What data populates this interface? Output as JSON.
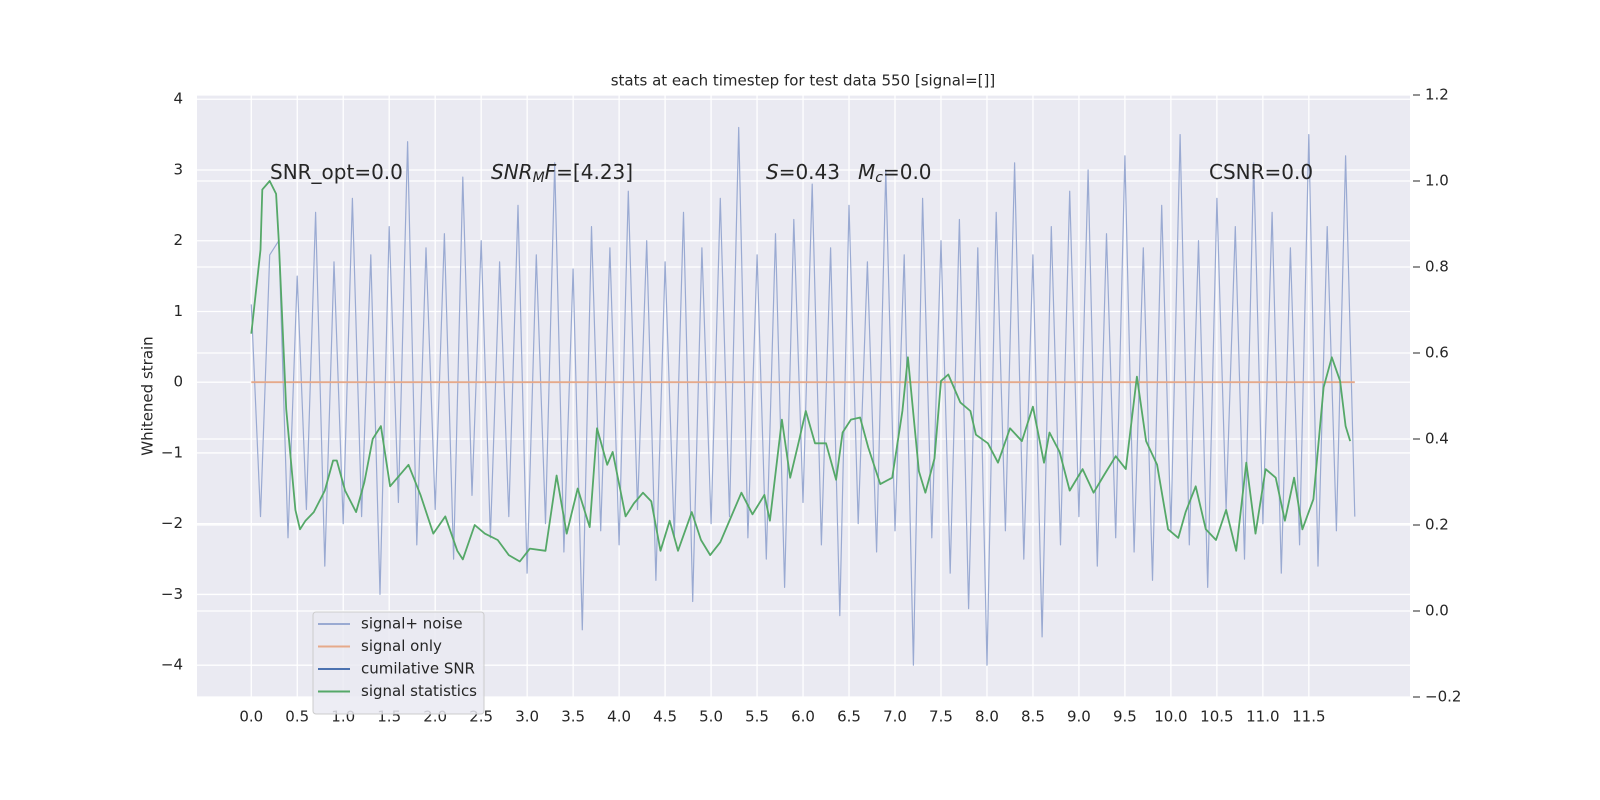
{
  "chart_data": {
    "type": "line",
    "title": "stats at each timestep for test data 550 [signal=[]]",
    "ylabel": "Whitened strain",
    "xlim": [
      -0.59,
      12.6
    ],
    "ylim": [
      -4.45,
      4.06
    ],
    "y2lim": [
      -0.2,
      1.2
    ],
    "xticks": [
      {
        "value": 0,
        "label": "0.0"
      },
      {
        "value": 0.5,
        "label": "0.5"
      },
      {
        "value": 1,
        "label": "1.0"
      },
      {
        "value": 1.5,
        "label": "1.5"
      },
      {
        "value": 2,
        "label": "2.0"
      },
      {
        "value": 2.5,
        "label": "2.5"
      },
      {
        "value": 3,
        "label": "3.0"
      },
      {
        "value": 3.5,
        "label": "3.5"
      },
      {
        "value": 4,
        "label": "4.0"
      },
      {
        "value": 4.5,
        "label": "4.5"
      },
      {
        "value": 5,
        "label": "5.0"
      },
      {
        "value": 5.5,
        "label": "5.5"
      },
      {
        "value": 6,
        "label": "6.0"
      },
      {
        "value": 6.5,
        "label": "6.5"
      },
      {
        "value": 7,
        "label": "7.0"
      },
      {
        "value": 7.5,
        "label": "7.5"
      },
      {
        "value": 8,
        "label": "8.0"
      },
      {
        "value": 8.5,
        "label": "8.5"
      },
      {
        "value": 9,
        "label": "9.0"
      },
      {
        "value": 9.5,
        "label": "9.5"
      },
      {
        "value": 10,
        "label": "10.0"
      },
      {
        "value": 10.5,
        "label": "10.5"
      },
      {
        "value": 11,
        "label": "11.0"
      },
      {
        "value": 11.5,
        "label": "11.5"
      }
    ],
    "yticks": [
      {
        "value": -4,
        "label": "−4"
      },
      {
        "value": -3,
        "label": "−3"
      },
      {
        "value": -2,
        "label": "−2"
      },
      {
        "value": -1,
        "label": "−1"
      },
      0,
      1,
      2,
      3,
      4
    ],
    "y2ticks": [
      {
        "value": -0.2,
        "label": "−0.2"
      },
      {
        "value": 0,
        "label": "0.0"
      },
      0.2,
      0.4,
      0.6,
      0.8,
      {
        "value": 1,
        "label": "1.0"
      },
      1.2
    ],
    "grid": true,
    "legend": "lower left",
    "annotations": [
      {
        "parts": [
          {
            "text": "SNR_opt=0.0",
            "style": "normal"
          }
        ]
      },
      {
        "parts": [
          {
            "text": "SNR",
            "style": "italic"
          },
          {
            "text": "M",
            "style": "sub"
          },
          {
            "text": "F",
            "style": "italic"
          },
          {
            "text": "=[4.23]",
            "style": "normal"
          }
        ]
      },
      {
        "parts": [
          {
            "text": "S",
            "style": "italic"
          },
          {
            "text": "=0.43",
            "style": "normal"
          }
        ]
      },
      {
        "parts": [
          {
            "text": "M",
            "style": "italic"
          },
          {
            "text": "c",
            "style": "sub"
          },
          {
            "text": "=0.0",
            "style": "normal"
          }
        ]
      },
      {
        "parts": [
          {
            "text": "CSNR=0.0",
            "style": "normal"
          }
        ]
      }
    ],
    "series": [
      {
        "name": "signal+ noise",
        "color": "#9aaad2",
        "x": [
          0,
          0.1,
          0.2,
          0.3,
          0.4,
          0.5,
          0.6,
          0.7,
          0.8,
          0.9,
          1,
          1.1,
          1.2,
          1.3,
          1.4,
          1.5,
          1.6,
          1.7,
          1.8,
          1.9,
          2,
          2.1,
          2.2,
          2.3,
          2.4,
          2.5,
          2.6,
          2.7,
          2.8,
          2.9,
          3,
          3.1,
          3.2,
          3.3,
          3.4,
          3.5,
          3.6,
          3.7,
          3.8,
          3.9,
          4,
          4.1,
          4.2,
          4.3,
          4.4,
          4.5,
          4.6,
          4.7,
          4.8,
          4.9,
          5,
          5.1,
          5.2,
          5.3,
          5.4,
          5.5,
          5.6,
          5.7,
          5.8,
          5.9,
          6,
          6.1,
          6.2,
          6.3,
          6.4,
          6.5,
          6.6,
          6.7,
          6.8,
          6.9,
          7,
          7.1,
          7.2,
          7.3,
          7.4,
          7.5,
          7.6,
          7.7,
          7.8,
          7.9,
          8,
          8.1,
          8.2,
          8.3,
          8.4,
          8.5,
          8.6,
          8.7,
          8.8,
          8.9,
          9,
          9.1,
          9.2,
          9.3,
          9.4,
          9.5,
          9.6,
          9.7,
          9.8,
          9.9,
          10,
          10.1,
          10.2,
          10.3,
          10.4,
          10.5,
          10.6,
          10.7,
          10.8,
          10.9,
          11,
          11.1,
          11.2,
          11.3,
          11.4,
          11.5,
          11.6,
          11.7,
          11.8,
          11.9,
          12
        ],
        "values": [
          1.1,
          -1.9,
          1.8,
          2.0,
          -2.2,
          1.5,
          -1.8,
          2.4,
          -2.6,
          1.7,
          -2.0,
          2.6,
          -1.9,
          1.8,
          -3.0,
          2.2,
          -1.7,
          3.4,
          -2.3,
          1.9,
          -1.8,
          2.1,
          -2.5,
          2.9,
          -1.6,
          2.0,
          -2.2,
          1.7,
          -1.9,
          2.5,
          -2.7,
          1.8,
          -2.0,
          3.1,
          -2.4,
          1.6,
          -3.5,
          2.2,
          -2.1,
          1.9,
          -2.3,
          2.7,
          -1.8,
          2.0,
          -2.8,
          1.7,
          -2.2,
          2.4,
          -3.1,
          1.9,
          -2.0,
          2.6,
          -1.9,
          3.6,
          -2.2,
          1.8,
          -2.5,
          2.1,
          -2.9,
          2.3,
          -1.7,
          2.8,
          -2.3,
          1.9,
          -3.3,
          2.5,
          -2.0,
          1.7,
          -2.4,
          3.0,
          -2.1,
          1.8,
          -4.0,
          2.6,
          -2.2,
          2.0,
          -2.7,
          2.3,
          -3.2,
          1.9,
          -4.0,
          2.4,
          -2.1,
          3.1,
          -2.5,
          1.8,
          -3.6,
          2.2,
          -2.3,
          2.7,
          -1.9,
          3.0,
          -2.6,
          2.1,
          -2.2,
          3.2,
          -2.4,
          1.9,
          -2.8,
          2.5,
          -2.1,
          3.5,
          -2.3,
          2.0,
          -2.9,
          2.6,
          -1.8,
          2.2,
          -2.5,
          3.1,
          -2.0,
          2.4,
          -2.7,
          1.9,
          -2.3,
          3.5,
          -2.6,
          2.2,
          -2.1,
          3.2,
          -1.9
        ]
      },
      {
        "name": "signal only",
        "color": "#e6a98a",
        "x": [
          0,
          12
        ],
        "values": [
          0,
          0
        ]
      },
      {
        "name": "cumilative SNR",
        "color": "#4c72b0"
      },
      {
        "name": "signal statistics",
        "color": "#55a868",
        "axis": "y2",
        "x": [
          0,
          0.1,
          0.12,
          0.2,
          0.27,
          0.3,
          0.38,
          0.48,
          0.53,
          0.59,
          0.68,
          0.8,
          0.89,
          0.93,
          1.02,
          1.14,
          1.23,
          1.32,
          1.41,
          1.51,
          1.71,
          1.84,
          1.98,
          2.11,
          2.24,
          2.3,
          2.43,
          2.54,
          2.68,
          2.8,
          2.92,
          3.03,
          3.2,
          3.32,
          3.43,
          3.55,
          3.68,
          3.76,
          3.87,
          3.93,
          4.07,
          4.16,
          4.26,
          4.35,
          4.45,
          4.55,
          4.64,
          4.79,
          4.89,
          4.99,
          5.1,
          5.21,
          5.33,
          5.45,
          5.58,
          5.64,
          5.77,
          5.86,
          5.95,
          6.03,
          6.13,
          6.25,
          6.36,
          6.43,
          6.52,
          6.62,
          6.71,
          6.84,
          6.97,
          7.08,
          7.14,
          7.26,
          7.33,
          7.43,
          7.5,
          7.58,
          7.71,
          7.82,
          7.88,
          8.01,
          8.12,
          8.25,
          8.38,
          8.5,
          8.62,
          8.68,
          8.79,
          8.9,
          9.04,
          9.16,
          9.27,
          9.4,
          9.51,
          9.63,
          9.73,
          9.85,
          9.97,
          10.08,
          10.16,
          10.27,
          10.38,
          10.49,
          10.6,
          10.71,
          10.82,
          10.92,
          11.03,
          11.14,
          11.24,
          11.34,
          11.43,
          11.55,
          11.66,
          11.75,
          11.84,
          11.9,
          11.95
        ],
        "values": [
          0.645,
          0.84,
          0.98,
          1.0,
          0.97,
          0.86,
          0.47,
          0.235,
          0.19,
          0.21,
          0.23,
          0.28,
          0.35,
          0.35,
          0.28,
          0.23,
          0.3,
          0.4,
          0.43,
          0.29,
          0.34,
          0.27,
          0.18,
          0.22,
          0.14,
          0.12,
          0.2,
          0.18,
          0.165,
          0.13,
          0.115,
          0.145,
          0.14,
          0.315,
          0.18,
          0.285,
          0.195,
          0.425,
          0.34,
          0.37,
          0.22,
          0.25,
          0.275,
          0.255,
          0.14,
          0.21,
          0.14,
          0.23,
          0.165,
          0.13,
          0.16,
          0.215,
          0.275,
          0.225,
          0.27,
          0.21,
          0.445,
          0.31,
          0.39,
          0.465,
          0.39,
          0.39,
          0.305,
          0.415,
          0.445,
          0.45,
          0.38,
          0.295,
          0.31,
          0.465,
          0.59,
          0.325,
          0.275,
          0.355,
          0.535,
          0.55,
          0.485,
          0.465,
          0.41,
          0.39,
          0.345,
          0.425,
          0.395,
          0.475,
          0.345,
          0.415,
          0.37,
          0.28,
          0.33,
          0.275,
          0.315,
          0.36,
          0.33,
          0.545,
          0.395,
          0.34,
          0.19,
          0.17,
          0.23,
          0.29,
          0.19,
          0.165,
          0.235,
          0.14,
          0.345,
          0.18,
          0.33,
          0.31,
          0.21,
          0.31,
          0.19,
          0.26,
          0.52,
          0.59,
          0.535,
          0.43,
          0.395
        ]
      }
    ]
  }
}
